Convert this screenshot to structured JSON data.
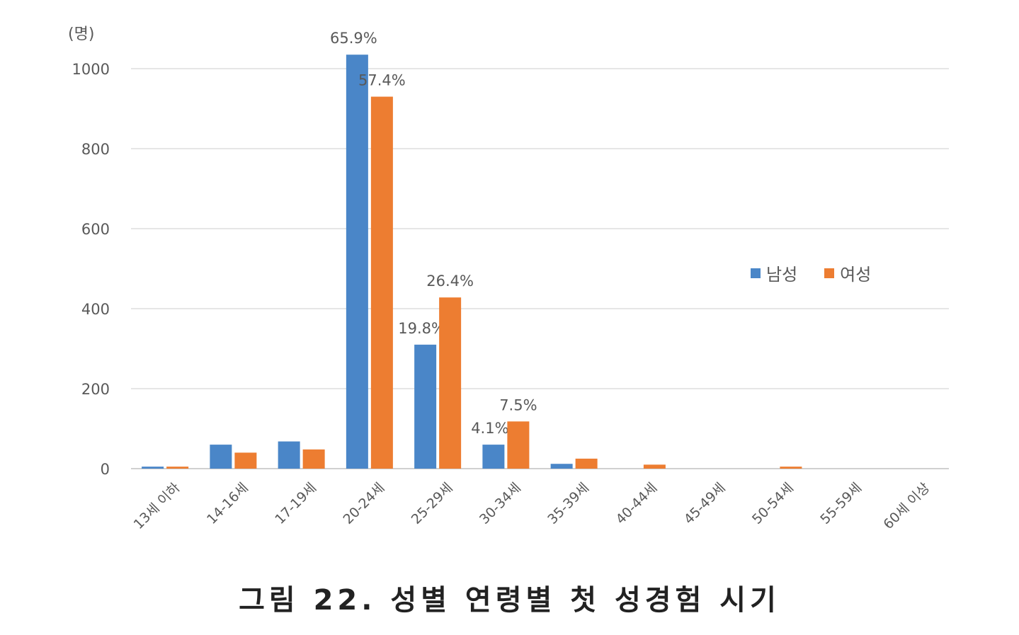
{
  "chart_data": {
    "type": "bar",
    "unit_label": "(명)",
    "categories": [
      "13세 이하",
      "14-16세",
      "17-19세",
      "20-24세",
      "25-29세",
      "30-34세",
      "35-39세",
      "40-44세",
      "45-49세",
      "50-54세",
      "55-59세",
      "60세 이상"
    ],
    "series": [
      {
        "name": "남성",
        "color": "#4a86c8",
        "values": [
          5,
          60,
          68,
          1035,
          310,
          60,
          12,
          0,
          0,
          0,
          0,
          0
        ],
        "labels": [
          "",
          "",
          "",
          "65.9%",
          "19.8%",
          "4.1%",
          "",
          "",
          "",
          "",
          "",
          ""
        ]
      },
      {
        "name": "여성",
        "color": "#ed7d31",
        "values": [
          5,
          40,
          48,
          930,
          428,
          118,
          25,
          10,
          0,
          5,
          0,
          0
        ],
        "labels": [
          "",
          "",
          "",
          "57.4%",
          "26.4%",
          "7.5%",
          "",
          "",
          "",
          "",
          "",
          ""
        ]
      }
    ],
    "ylim": [
      0,
      1000
    ],
    "yticks": [
      0,
      200,
      400,
      600,
      800,
      1000
    ],
    "grid": true,
    "legend_position": "right"
  },
  "caption": "그림 22. 성별 연령별 첫 성경험 시기"
}
